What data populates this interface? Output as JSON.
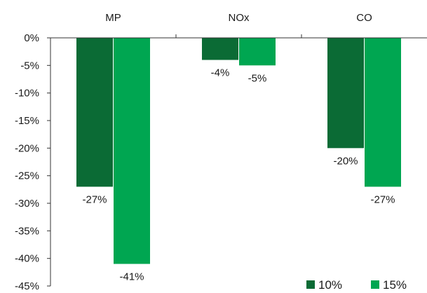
{
  "chart_data": {
    "type": "bar",
    "categories": [
      "MP",
      "NOx",
      "CO"
    ],
    "series": [
      {
        "name": "10%",
        "values": [
          -27,
          -4,
          -20
        ],
        "color": "#0b6b35"
      },
      {
        "name": "15%",
        "values": [
          -41,
          -5,
          -27
        ],
        "color": "#00a651"
      }
    ],
    "data_labels": [
      [
        "-27%",
        "-4%",
        "-20%"
      ],
      [
        "-41%",
        "-5%",
        "-27%"
      ]
    ],
    "ylim": [
      -45,
      0
    ],
    "y_ticks": [
      0,
      -5,
      -10,
      -15,
      -20,
      -25,
      -30,
      -35,
      -40,
      -45
    ],
    "y_tick_labels": [
      "0%",
      "-5%",
      "-10%",
      "-15%",
      "-20%",
      "-25%",
      "-30%",
      "-35%",
      "-40%",
      "-45%"
    ],
    "category_axis_position": "top",
    "legend_position": "bottom-right",
    "grid": false,
    "title": "",
    "xlabel": "",
    "ylabel": ""
  }
}
